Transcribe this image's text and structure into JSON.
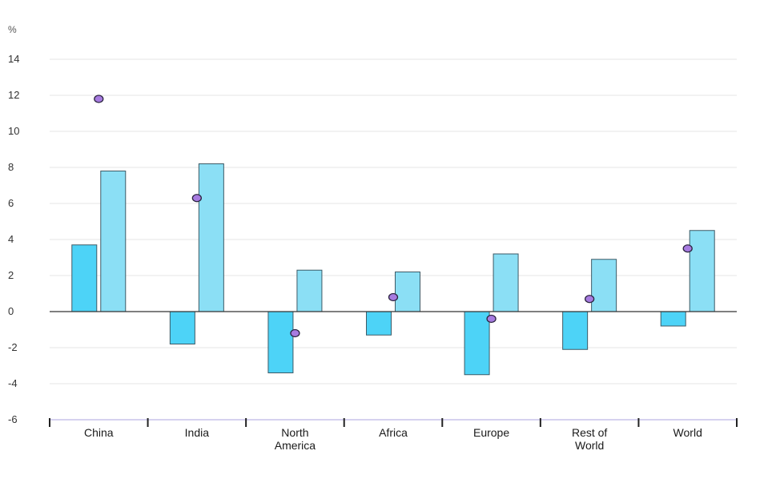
{
  "chart_data": {
    "type": "bar",
    "ylabel": "%",
    "ylim": [
      -6,
      14
    ],
    "yticks": [
      -6,
      -4,
      -2,
      0,
      2,
      4,
      6,
      8,
      10,
      12,
      14
    ],
    "grid": true,
    "legend": "none",
    "categories": [
      [
        "China"
      ],
      [
        "India"
      ],
      [
        "North",
        "America"
      ],
      [
        "Africa"
      ],
      [
        "Europe"
      ],
      [
        "Rest of",
        "World"
      ],
      [
        "World"
      ]
    ],
    "series": [
      {
        "kind": "bar",
        "color": "#4dd3f7",
        "values": [
          3.7,
          -1.8,
          -3.4,
          -1.3,
          -3.5,
          -2.1,
          -0.8
        ]
      },
      {
        "kind": "bar",
        "color": "#8bdff5",
        "values": [
          7.8,
          8.2,
          2.3,
          2.2,
          3.2,
          2.9,
          4.5
        ]
      },
      {
        "kind": "point",
        "color": "#a77be0",
        "values": [
          11.8,
          6.3,
          -1.2,
          0.8,
          -0.4,
          0.7,
          3.5
        ]
      }
    ]
  }
}
